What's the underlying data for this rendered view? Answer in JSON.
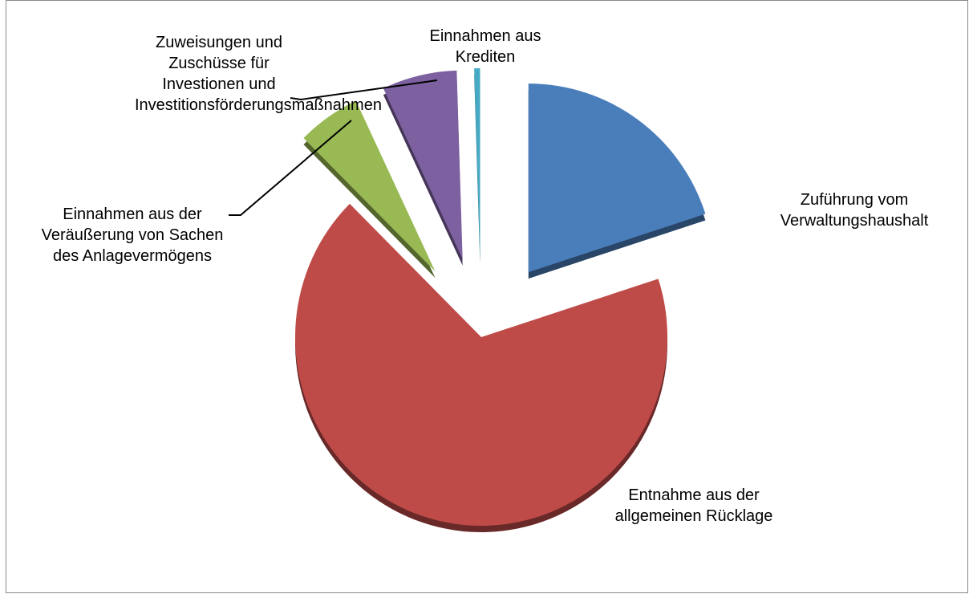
{
  "chart_data": {
    "type": "pie",
    "categories": [
      "Zuführung vom Verwaltungshaushalt",
      "Entnahme aus der allgemeinen Rücklage",
      "Einnahmen aus der Veräußerung von Sachen des Anlagevermögens",
      "Zuweisungen und Zuschüsse für Investionen und Investitionsförderungsmaßnahmen",
      "Einnahmen aus Krediten"
    ],
    "values": [
      20,
      67.5,
      5.5,
      6.5,
      0.5
    ],
    "colors": [
      "#4a7ebb",
      "#be4b48",
      "#98b954",
      "#7d60a0",
      "#46aac5"
    ]
  }
}
